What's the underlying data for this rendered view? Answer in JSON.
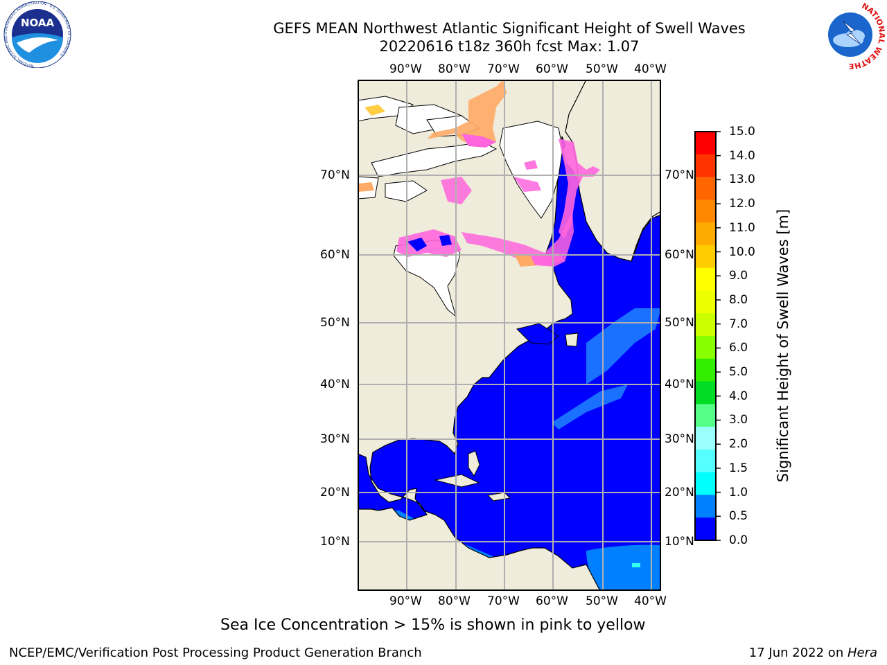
{
  "header": {
    "title_line1": "GEFS MEAN Northwest Atlantic Significant Height of Swell Waves",
    "title_line2": "20220616 t18z 360h fcst   Max: 1.07"
  },
  "logos": {
    "noaa_text": "NOAA",
    "noaa_ring_text": "NATIONAL OCEANIC AND ATMOSPHERIC ADMINISTRATION · U.S. DEPARTMENT OF COMMERCE",
    "nws_ring_text": "NATIONAL WEATHER SERVICE"
  },
  "map": {
    "lon_labels": [
      "90°W",
      "80°W",
      "70°W",
      "60°W",
      "50°W",
      "40°W"
    ],
    "lat_labels": [
      "70°N",
      "60°N",
      "50°N",
      "40°N",
      "30°N",
      "20°N",
      "10°N"
    ],
    "colors": {
      "land": "#efecdc",
      "ocean_swell_0_05": "#0000ff",
      "ocean_swell_05_1": "#0080ff",
      "grid": "#b0b0b0",
      "sea_ice_pink": "#ff66dd",
      "sea_ice_orange": "#ffaa66",
      "ice_no_data": "#ffffff"
    }
  },
  "colorbar": {
    "label": "Significant Height of Swell Waves [m]",
    "ticks": [
      "15.0",
      "14.0",
      "13.0",
      "12.0",
      "11.0",
      "10.0",
      "9.0",
      "8.0",
      "7.0",
      "6.0",
      "5.0",
      "4.0",
      "3.0",
      "2.0",
      "1.5",
      "1.0",
      "0.5",
      "0.0"
    ],
    "colors": [
      "#ff0000",
      "#ff3300",
      "#ff6600",
      "#ff8800",
      "#ffaa00",
      "#ffcc00",
      "#ffff00",
      "#eeff00",
      "#ccff00",
      "#88ff00",
      "#33ee00",
      "#00dd22",
      "#55ff88",
      "#99ffff",
      "#55ffff",
      "#00ffff",
      "#0080ff",
      "#0000ff"
    ]
  },
  "footer": {
    "note": "Sea Ice Concentration > 15% is shown in pink to yellow",
    "branch": "NCEP/EMC/Verification Post Processing Product Generation Branch",
    "date_prefix": "17 Jun 2022 on ",
    "machine": "Hera"
  }
}
